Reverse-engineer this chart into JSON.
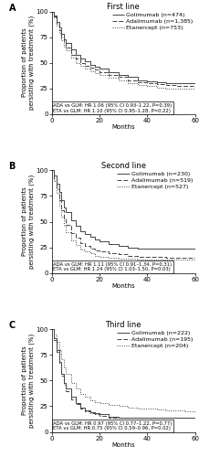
{
  "panels": [
    {
      "label": "A",
      "title": "First line",
      "legend": [
        {
          "name": "Golimumab (n=474)",
          "ls": "-"
        },
        {
          "name": "Adalimumab (n=1,385)",
          "ls": "--"
        },
        {
          "name": "Etanercept (n=753)",
          "ls": ":"
        }
      ],
      "annotation1": "ADA vs GLM: HR 1.06 (95% CI 0.93–1.22, P=0.39)",
      "annotation2": "ETA vs GLM: HR 1.10 (95% CI 0.95–1.28, P=0.22)",
      "curves": {
        "golimumab": {
          "t": [
            0,
            1,
            2,
            3,
            4,
            5,
            6,
            8,
            10,
            12,
            14,
            16,
            18,
            20,
            24,
            28,
            32,
            36,
            40,
            44,
            48,
            52,
            56,
            60
          ],
          "s": [
            100,
            96,
            90,
            84,
            78,
            73,
            69,
            63,
            58,
            54,
            51,
            48,
            46,
            44,
            41,
            38,
            36,
            33,
            32,
            31,
            30,
            30,
            30,
            29
          ]
        },
        "adalimumab": {
          "t": [
            0,
            1,
            2,
            3,
            4,
            5,
            6,
            8,
            10,
            12,
            14,
            16,
            18,
            20,
            24,
            28,
            32,
            36,
            40,
            44,
            48,
            52,
            56,
            60
          ],
          "s": [
            100,
            95,
            88,
            82,
            75,
            70,
            65,
            58,
            54,
            50,
            47,
            45,
            43,
            41,
            38,
            36,
            33,
            31,
            30,
            29,
            28,
            27,
            27,
            27
          ]
        },
        "etanercept": {
          "t": [
            0,
            1,
            2,
            3,
            4,
            5,
            6,
            8,
            10,
            12,
            14,
            16,
            18,
            20,
            24,
            28,
            32,
            36,
            40,
            44,
            48,
            52,
            56,
            60
          ],
          "s": [
            100,
            94,
            86,
            79,
            72,
            66,
            62,
            55,
            50,
            47,
            44,
            42,
            40,
            38,
            35,
            33,
            30,
            28,
            27,
            26,
            25,
            25,
            25,
            24
          ]
        }
      }
    },
    {
      "label": "B",
      "title": "Second line",
      "legend": [
        {
          "name": "Golimumab (n=230)",
          "ls": "-"
        },
        {
          "name": "Adalimumab (n=519)",
          "ls": "--"
        },
        {
          "name": "Etanercept (n=527)",
          "ls": ":"
        }
      ],
      "annotation1": "ADA vs GLM: HR 1.11 (95% CI 0.91–1.34, P=0.31)",
      "annotation2": "ETA vs GLM: HR 1.24 (95% CI 1.03–1.50, P=0.03)",
      "curves": {
        "golimumab": {
          "t": [
            0,
            1,
            2,
            3,
            4,
            5,
            6,
            8,
            10,
            12,
            14,
            16,
            18,
            20,
            24,
            28,
            32,
            36,
            40,
            44,
            48,
            52,
            56,
            60
          ],
          "s": [
            100,
            95,
            87,
            79,
            71,
            64,
            59,
            51,
            46,
            41,
            38,
            35,
            33,
            31,
            28,
            26,
            25,
            24,
            24,
            24,
            24,
            24,
            24,
            24
          ]
        },
        "adalimumab": {
          "t": [
            0,
            1,
            2,
            3,
            4,
            5,
            6,
            8,
            10,
            12,
            14,
            16,
            18,
            20,
            24,
            28,
            32,
            36,
            40,
            44,
            48,
            52,
            56,
            60
          ],
          "s": [
            100,
            92,
            82,
            71,
            61,
            53,
            47,
            39,
            34,
            29,
            26,
            24,
            22,
            21,
            19,
            18,
            17,
            16,
            16,
            16,
            15,
            15,
            15,
            15
          ]
        },
        "etanercept": {
          "t": [
            0,
            1,
            2,
            3,
            4,
            5,
            6,
            8,
            10,
            12,
            14,
            16,
            18,
            20,
            24,
            28,
            32,
            36,
            40,
            44,
            48,
            52,
            56,
            60
          ],
          "s": [
            100,
            90,
            78,
            66,
            55,
            46,
            40,
            32,
            27,
            23,
            21,
            19,
            17,
            16,
            15,
            14,
            14,
            13,
            13,
            13,
            13,
            13,
            13,
            13
          ]
        }
      }
    },
    {
      "label": "C",
      "title": "Third line",
      "legend": [
        {
          "name": "Golimumab (n=222)",
          "ls": "-"
        },
        {
          "name": "Adalimumab (n=195)",
          "ls": "--"
        },
        {
          "name": "Etanercept (n=204)",
          "ls": ":"
        }
      ],
      "annotation1": "ADA vs GLM: HR 0.97 (95% CI 0.77–1.22, P=0.77)",
      "annotation2": "ETA vs GLM: HR 0.75 (95% CI 0.59–0.96, P=0.02)",
      "curves": {
        "golimumab": {
          "t": [
            0,
            1,
            2,
            3,
            4,
            5,
            6,
            8,
            10,
            12,
            14,
            16,
            18,
            20,
            24,
            28,
            32,
            36,
            40,
            44,
            48,
            52,
            56,
            60
          ],
          "s": [
            100,
            91,
            80,
            68,
            57,
            48,
            42,
            34,
            28,
            24,
            21,
            19,
            18,
            17,
            15,
            14,
            14,
            14,
            14,
            14,
            14,
            14,
            14,
            14
          ]
        },
        "adalimumab": {
          "t": [
            0,
            1,
            2,
            3,
            4,
            5,
            6,
            8,
            10,
            12,
            14,
            16,
            18,
            20,
            24,
            28,
            32,
            36,
            40,
            44,
            48,
            52,
            56,
            60
          ],
          "s": [
            100,
            90,
            78,
            66,
            55,
            46,
            40,
            32,
            27,
            23,
            20,
            18,
            17,
            16,
            14,
            14,
            14,
            14,
            14,
            14,
            14,
            14,
            14,
            14
          ]
        },
        "etanercept": {
          "t": [
            0,
            1,
            2,
            3,
            4,
            5,
            6,
            8,
            10,
            12,
            14,
            16,
            18,
            20,
            24,
            28,
            32,
            36,
            40,
            44,
            48,
            52,
            56,
            60
          ],
          "s": [
            100,
            95,
            88,
            80,
            71,
            63,
            57,
            48,
            42,
            37,
            34,
            31,
            29,
            28,
            26,
            25,
            24,
            23,
            23,
            22,
            21,
            21,
            20,
            20
          ]
        }
      }
    }
  ],
  "line_color": "#444444",
  "ylabel": "Proportion of patients\npersisting with treatment (%)",
  "xlabel": "Months",
  "xlim": [
    0,
    60
  ],
  "ylim": [
    0,
    100
  ],
  "xticks": [
    0,
    20,
    40,
    60
  ],
  "yticks": [
    0,
    25,
    50,
    75,
    100
  ],
  "fontsize_title": 6,
  "fontsize_label": 5,
  "fontsize_tick": 5,
  "fontsize_legend": 4.5,
  "fontsize_annot": 3.8,
  "fontsize_panel_label": 7
}
